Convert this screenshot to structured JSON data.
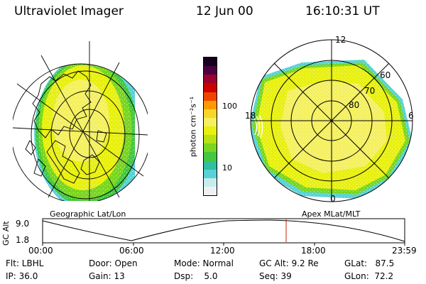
{
  "header": {
    "title": "Ultraviolet Imager",
    "date": "12 Jun 00",
    "time": "16:10:31 UT"
  },
  "geo_panel": {
    "label": "Geographic Lat/Lon"
  },
  "apex_panel": {
    "label": "Apex MLat/MLT",
    "mlt_labels": {
      "top": "12",
      "right": "6",
      "bottom": "0",
      "left": "18"
    },
    "lat_labels": [
      "60",
      "70",
      "80"
    ]
  },
  "colorbar": {
    "unit": "photon cm⁻²s⁻¹",
    "ticks": [
      "100",
      "10"
    ],
    "colors": [
      "#eef0f2",
      "#c6ecee",
      "#58d2d6",
      "#2ec0a0",
      "#44c840",
      "#7ad620",
      "#b6e216",
      "#e8f010",
      "#f4f060",
      "#f8d628",
      "#ff9a00",
      "#ee4400",
      "#cc0000",
      "#9a0030",
      "#4a0040",
      "#14001e"
    ]
  },
  "altitude_plot": {
    "ylabel": "GC Alt",
    "y_ticks": [
      "9.0",
      "1.8"
    ],
    "x_ticks": [
      "00:00",
      "06:00",
      "12:00",
      "18:00",
      "23:59"
    ],
    "current_time_marker": "16:10"
  },
  "info": {
    "flt": "Flt: LBHL",
    "ip": "IP: 36.0",
    "door": "Door: Open",
    "gain": "Gain: 13",
    "mode": "Mode: Normal",
    "dsp": "Dsp:    5.0",
    "gcalt": "GC Alt: 9.2 Re",
    "seq": "Seq: 39",
    "glat": "GLat:   87.5",
    "glon": "GLon:  72.2"
  }
}
